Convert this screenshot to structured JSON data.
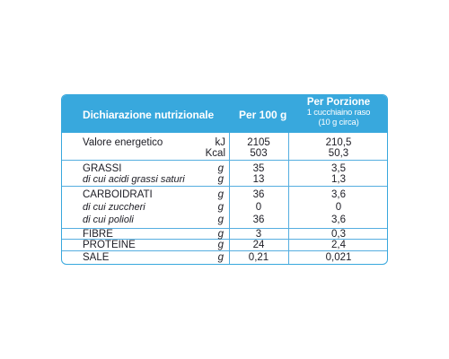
{
  "header": {
    "title": "Dichiarazione nutrizionale",
    "per100": "Per 100 g",
    "portion_line1": "Per Porzione",
    "portion_line2": "1 cucchiaino raso",
    "portion_line3": "(10 g circa)"
  },
  "rows": [
    {
      "name": "Valore energetico",
      "unit": "kJ",
      "v100": "2105",
      "vpor": "210,5"
    },
    {
      "name": "",
      "unit": "Kcal",
      "v100": "503",
      "vpor": "50,3"
    },
    {
      "name": "GRASSI",
      "unit": "g",
      "v100": "35",
      "vpor": "3,5"
    },
    {
      "name": "di cui acidi grassi saturi",
      "unit": "g",
      "v100": "13",
      "vpor": "1,3"
    },
    {
      "name": "CARBOIDRATI",
      "unit": "g",
      "v100": "36",
      "vpor": "3,6"
    },
    {
      "name": "di cui zuccheri",
      "unit": "g",
      "v100": "0",
      "vpor": "0"
    },
    {
      "name": "di cui polioli",
      "unit": "g",
      "v100": "36",
      "vpor": "3,6"
    },
    {
      "name": "FIBRE",
      "unit": "g",
      "v100": "3",
      "vpor": "0,3"
    },
    {
      "name": "PROTEINE",
      "unit": "g",
      "v100": "24",
      "vpor": "2,4"
    },
    {
      "name": "SALE",
      "unit": "g",
      "v100": "0,21",
      "vpor": "0,021"
    }
  ],
  "colors": {
    "header_bg": "#38a8dd",
    "border": "#38a8dd"
  }
}
